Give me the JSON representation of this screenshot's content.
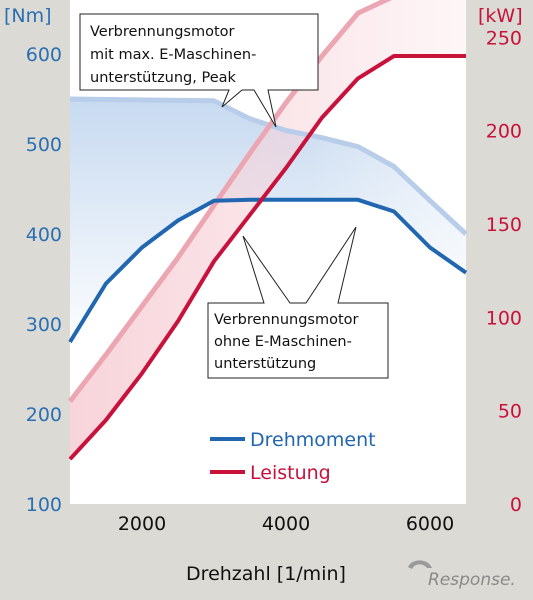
{
  "chart_data": {
    "type": "line",
    "x_ticks": [
      2000,
      4000,
      6000
    ],
    "xlim": [
      1000,
      6500
    ],
    "xlabel": "Drehzahl [1/min]",
    "y_left": {
      "label": "[Nm]",
      "ticks": [
        100,
        200,
        300,
        400,
        500,
        600
      ],
      "ylim": [
        100,
        660
      ]
    },
    "y_right": {
      "label": "[kW]",
      "ticks": [
        0,
        50,
        100,
        150,
        200,
        250
      ],
      "ylim": [
        0,
        270
      ]
    },
    "series": [
      {
        "name": "Drehmoment",
        "axis": "left",
        "role": "torque_ohne",
        "color": "#2166b0",
        "x": [
          1000,
          1500,
          2000,
          2500,
          3000,
          3500,
          4000,
          4500,
          5000,
          5500,
          6000,
          6500
        ],
        "y": [
          280,
          345,
          385,
          415,
          437,
          438,
          438,
          438,
          438,
          425,
          385,
          357
        ]
      },
      {
        "name": "",
        "axis": "left",
        "role": "torque_peak",
        "color": "#b7cde9",
        "x": [
          1000,
          3000,
          3500,
          4000,
          4500,
          5000,
          5500,
          6000,
          6500
        ],
        "y": [
          550,
          548,
          528,
          515,
          507,
          497,
          475,
          437,
          400
        ]
      },
      {
        "name": "Leistung",
        "axis": "right",
        "role": "power_ohne",
        "color": "#c8123c",
        "x": [
          1000,
          1500,
          2000,
          2500,
          3000,
          3500,
          4000,
          4500,
          5000,
          5500,
          6000,
          6500
        ],
        "y": [
          24,
          45,
          70,
          98,
          130,
          155,
          180,
          207,
          228,
          240,
          240,
          240
        ]
      },
      {
        "name": "",
        "axis": "right",
        "role": "power_peak",
        "color": "#eca6b2",
        "x": [
          1000,
          1500,
          2000,
          2500,
          3000,
          3500,
          4000,
          4500,
          5000,
          5500,
          6000,
          6500
        ],
        "y": [
          55,
          80,
          106,
          132,
          160,
          188,
          215,
          240,
          263,
          272,
          272,
          272
        ]
      }
    ],
    "annotations": [
      {
        "role": "top",
        "lines": [
          "Verbrennungsmotor",
          "mit max. E-Maschinen-",
          "unterstützung, Peak"
        ]
      },
      {
        "role": "bottom",
        "lines": [
          "Verbrennungsmotor",
          "ohne E-Maschinen-",
          "unterstützung"
        ]
      }
    ],
    "legend": {
      "position": "lower-center",
      "items": [
        "Drehmoment",
        "Leistung"
      ]
    },
    "grid": false
  },
  "watermark": "Response.",
  "colors": {
    "torque": "#2166b0",
    "torque_peak": "#b7cde9",
    "power": "#c8123c",
    "power_peak": "#eca6b2",
    "axis_band": "#dcdad5",
    "tick_left": "#2b6fb3",
    "tick_right": "#c8123c"
  }
}
